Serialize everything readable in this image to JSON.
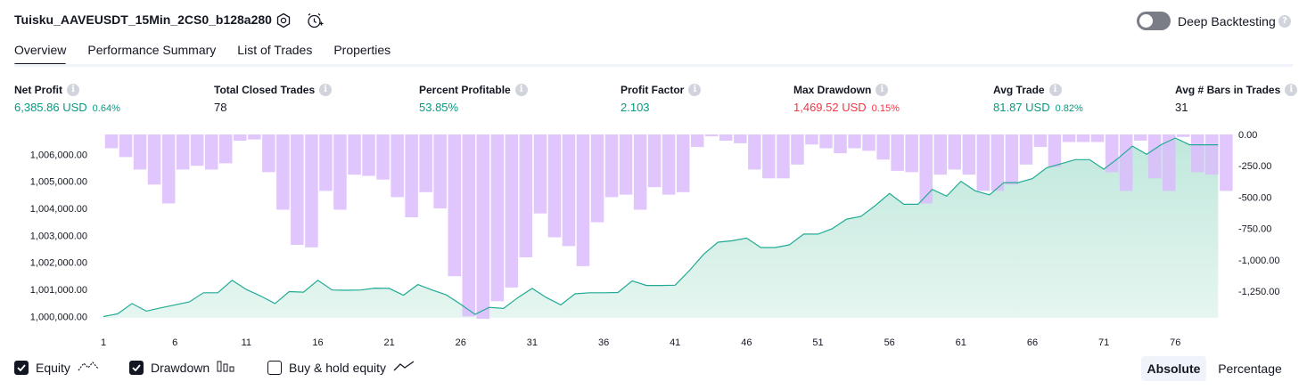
{
  "header": {
    "title": "Tuisku_AAVEUSDT_15Min_2CS0_b128a280",
    "deep_backtesting_label": "Deep Backtesting",
    "deep_backtesting_enabled": false
  },
  "tabs": [
    {
      "label": "Overview",
      "active": true
    },
    {
      "label": "Performance Summary",
      "active": false
    },
    {
      "label": "List of Trades",
      "active": false
    },
    {
      "label": "Properties",
      "active": false
    }
  ],
  "metrics": {
    "net_profit": {
      "label": "Net Profit",
      "value": "6,385.86 USD",
      "pct": "0.64%"
    },
    "total_closed_trades": {
      "label": "Total Closed Trades",
      "value": "78"
    },
    "percent_profitable": {
      "label": "Percent Profitable",
      "value": "53.85%"
    },
    "profit_factor": {
      "label": "Profit Factor",
      "value": "2.103"
    },
    "max_drawdown": {
      "label": "Max Drawdown",
      "value": "1,469.52 USD",
      "pct": "0.15%"
    },
    "avg_trade": {
      "label": "Avg Trade",
      "value": "81.87 USD",
      "pct": "0.82%"
    },
    "avg_bars": {
      "label": "Avg # Bars in Trades",
      "value": "31"
    }
  },
  "colors": {
    "positive": "#089981",
    "negative": "#f23645",
    "drawdown_bar": "#dbbcfb",
    "equity_line": "#22ab94",
    "equity_fill": "#c8e9e0"
  },
  "legend": {
    "equity": {
      "label": "Equity",
      "checked": true,
      "icon": "equity-line-icon"
    },
    "drawdown": {
      "label": "Drawdown",
      "checked": true,
      "icon": "drawdown-bars-icon"
    },
    "buy_hold": {
      "label": "Buy & hold equity",
      "checked": false,
      "icon": "buy-hold-line-icon"
    }
  },
  "view_toggle": {
    "absolute": "Absolute",
    "percentage": "Percentage",
    "selected": "Absolute"
  },
  "chart_data": {
    "type": "line",
    "x": [
      1,
      2,
      3,
      4,
      5,
      6,
      7,
      8,
      9,
      10,
      11,
      12,
      13,
      14,
      15,
      16,
      17,
      18,
      19,
      20,
      21,
      22,
      23,
      24,
      25,
      26,
      27,
      28,
      29,
      30,
      31,
      32,
      33,
      34,
      35,
      36,
      37,
      38,
      39,
      40,
      41,
      42,
      43,
      44,
      45,
      46,
      47,
      48,
      49,
      50,
      51,
      52,
      53,
      54,
      55,
      56,
      57,
      58,
      59,
      60,
      61,
      62,
      63,
      64,
      65,
      66,
      67,
      68,
      69,
      70,
      71,
      72,
      73,
      74,
      75,
      76,
      77,
      78,
      79
    ],
    "x_ticks": [
      "1",
      "6",
      "11",
      "16",
      "21",
      "26",
      "31",
      "36",
      "41",
      "46",
      "51",
      "56",
      "61",
      "66",
      "71",
      "76"
    ],
    "y_left_ticks": [
      "1,000,000.00",
      "1,001,000.00",
      "1,002,000.00",
      "1,003,000.00",
      "1,004,000.00",
      "1,005,000.00",
      "1,006,000.00"
    ],
    "y_right_ticks": [
      "0.00",
      "-250.00",
      "-500.00",
      "-750.00",
      "-1,000.00",
      "-1,250.00"
    ],
    "ylim_equity": [
      999950,
      1006700
    ],
    "ylim_drawdown": [
      -1469.52,
      0
    ],
    "series": [
      {
        "name": "Equity",
        "axis": "left",
        "values": [
          1000000,
          1000100,
          1000480,
          1000200,
          1000320,
          1000430,
          1000540,
          1000880,
          1000880,
          1001340,
          1001000,
          1000760,
          1000480,
          1000920,
          1000900,
          1001340,
          1000980,
          1000970,
          1000980,
          1001050,
          1001040,
          1000790,
          1001180,
          1000980,
          1000800,
          1000450,
          1000080,
          1000340,
          1000300,
          1000700,
          1001040,
          1000700,
          1000430,
          1000840,
          1000880,
          1000880,
          1000890,
          1001320,
          1001150,
          1001150,
          1001160,
          1001700,
          1002300,
          1002750,
          1002800,
          1002900,
          1002550,
          1002550,
          1002650,
          1003050,
          1003050,
          1003250,
          1003600,
          1003700,
          1004100,
          1004550,
          1004150,
          1004150,
          1004700,
          1004450,
          1005000,
          1004650,
          1004500,
          1004950,
          1004950,
          1005100,
          1005500,
          1005650,
          1005800,
          1005800,
          1005450,
          1005850,
          1006300,
          1006000,
          1006350,
          1006600,
          1006350,
          1006350,
          1006350
        ]
      },
      {
        "name": "Drawdown",
        "axis": "right",
        "type": "bar",
        "values": [
          -110,
          -180,
          -280,
          -400,
          -550,
          -280,
          -250,
          -280,
          -230,
          -50,
          -40,
          -300,
          -600,
          -880,
          -900,
          -450,
          -600,
          -320,
          -330,
          -360,
          -500,
          -660,
          -460,
          -590,
          -1130,
          -1450,
          -1470,
          -1330,
          -1220,
          -980,
          -630,
          -820,
          -890,
          -1050,
          -700,
          -500,
          -480,
          -600,
          -420,
          -480,
          -460,
          -100,
          -15,
          -50,
          -70,
          -280,
          -350,
          -350,
          -240,
          -80,
          -110,
          -150,
          -110,
          -130,
          -200,
          -290,
          -300,
          -550,
          -320,
          -280,
          -320,
          -450,
          -450,
          -400,
          -240,
          -100,
          -260,
          -60,
          -60,
          -60,
          -300,
          -450,
          -50,
          -350,
          -450,
          -20,
          -300,
          -320,
          -450
        ]
      }
    ]
  }
}
